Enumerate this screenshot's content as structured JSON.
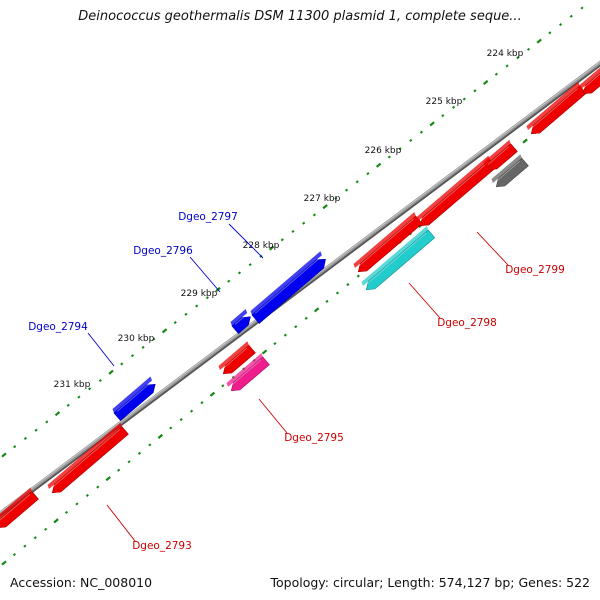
{
  "title": "Deinococcus geothermalis DSM 11300 plasmid 1, complete seque...",
  "footer": {
    "accession": "Accession: NC_008010",
    "summary": "Topology: circular; Length: 574,127 bp; Genes: 522"
  },
  "colors": {
    "forward_gene": "#0000ee",
    "reverse_gene": "#ee0000",
    "reverse_gene_magenta": "#ee1c8c",
    "reverse_gene_cyan": "#22cccc",
    "other_gene": "#666666",
    "backbone": "#888888",
    "ticks": "#118811"
  },
  "scale": {
    "labels": [
      "224 kbp",
      "225 kbp",
      "226 kbp",
      "227 kbp",
      "228 kbp",
      "229 kbp",
      "230 kbp",
      "231 kbp"
    ]
  },
  "gene_labels": {
    "forward": [
      "Dgeo_2797",
      "Dgeo_2796",
      "Dgeo_2794"
    ],
    "reverse": [
      "Dgeo_2799",
      "Dgeo_2798",
      "Dgeo_2795",
      "Dgeo_2793"
    ]
  }
}
